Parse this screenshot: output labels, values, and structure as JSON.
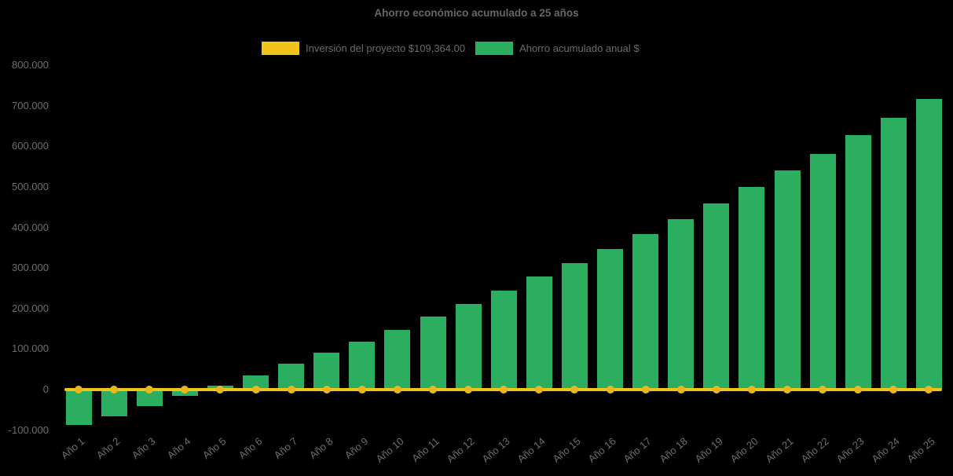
{
  "background": "#000000",
  "title": {
    "text": "Ahorro económico acumulado a 25 años"
  },
  "legend": {
    "items": [
      {
        "label": "Inversión del proyecto $109,364.00",
        "color": "#F0C419",
        "series_type": "line"
      },
      {
        "label": "Ahorro acumulado anual $",
        "color": "#2BAE60",
        "series_type": "bar"
      }
    ]
  },
  "chart_data": {
    "type": "bar",
    "title": "Ahorro económico acumulado a 25 años",
    "categories": [
      "Año 1",
      "Año 2",
      "Año 3",
      "Año 4",
      "Año 5",
      "Año 6",
      "Año 7",
      "Año 8",
      "Año 9",
      "Año 10",
      "Año 11",
      "Año 12",
      "Año 13",
      "Año 14",
      "Año 15",
      "Año 16",
      "Año 17",
      "Año 18",
      "Año 19",
      "Año 20",
      "Año 21",
      "Año 22",
      "Año 23",
      "Año 24",
      "Año 25"
    ],
    "series": [
      {
        "name": "Ahorro acumulado anual $",
        "type": "bar",
        "color": "#2BAE60",
        "values": [
          -88000,
          -65000,
          -41000,
          -16000,
          10000,
          35000,
          63000,
          91000,
          119000,
          148000,
          180000,
          212000,
          245000,
          279000,
          312000,
          347000,
          384000,
          421000,
          459000,
          500000,
          541000,
          581000,
          628000,
          671000,
          717000
        ]
      },
      {
        "name": "Inversión del proyecto $109,364.00",
        "type": "line",
        "color": "#F0C419",
        "marker_color": "#E9B71B",
        "values": [
          0,
          0,
          0,
          0,
          0,
          0,
          0,
          0,
          0,
          0,
          0,
          0,
          0,
          0,
          0,
          0,
          0,
          0,
          0,
          0,
          0,
          0,
          0,
          0,
          0
        ]
      }
    ],
    "xlabel": "",
    "ylabel": "",
    "ylim": [
      -100000,
      800000
    ],
    "y_ticks": [
      {
        "value": 800000,
        "label": "800.000"
      },
      {
        "value": 700000,
        "label": "700.000"
      },
      {
        "value": 600000,
        "label": "600.000"
      },
      {
        "value": 500000,
        "label": "500.000"
      },
      {
        "value": 400000,
        "label": "400.000"
      },
      {
        "value": 300000,
        "label": "300.000"
      },
      {
        "value": 200000,
        "label": "200.000"
      },
      {
        "value": 100000,
        "label": "100.000"
      },
      {
        "value": 0,
        "label": "0"
      },
      {
        "value": -100000,
        "label": "-100.000"
      }
    ],
    "grid": false,
    "legend_position": "top"
  }
}
